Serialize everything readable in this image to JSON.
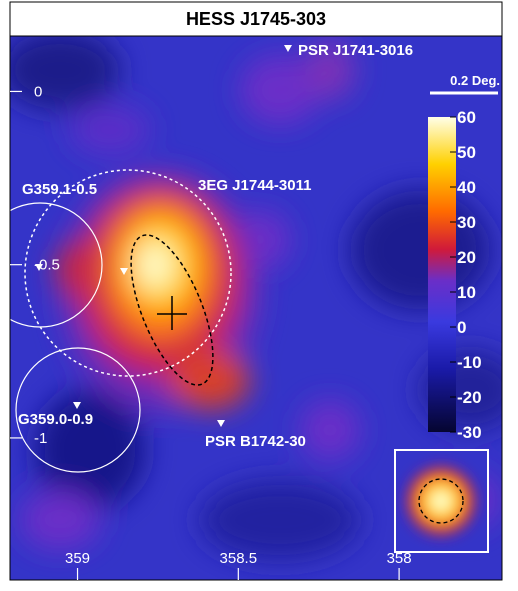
{
  "chart_data": {
    "type": "skymap",
    "title": "HESS J1745-303",
    "xlim": [
      359.21,
      357.68
    ],
    "xticks": [
      359,
      358.5,
      358
    ],
    "ylim": [
      -1.41,
      0.16
    ],
    "yticks": [
      0,
      -0.5,
      -1
    ],
    "clim": [
      -30,
      60
    ],
    "cticks": [
      60,
      50,
      40,
      30,
      20,
      10,
      0,
      -10,
      -20,
      -30
    ],
    "annotations": [
      "PSR J1741-3016",
      "3EG J1744-3011",
      "G359.1-0.5",
      "G359.0-0.9",
      "PSR B1742-30",
      "0.2 Deg."
    ]
  }
}
